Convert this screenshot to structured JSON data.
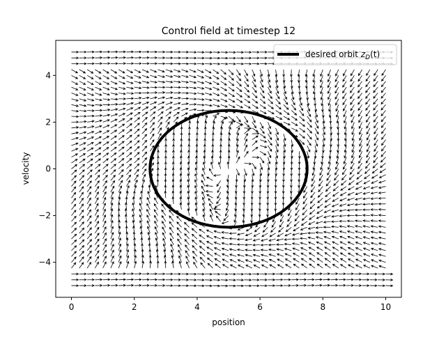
{
  "chart_data": {
    "type": "quiver",
    "title": "Control field at timestep 12",
    "xlabel": "position",
    "ylabel": "velocity",
    "xlim": [
      -0.5,
      10.5
    ],
    "ylim": [
      -5.5,
      5.5
    ],
    "x_ticks": [
      0,
      2,
      4,
      6,
      8,
      10
    ],
    "y_ticks": [
      -4,
      -2,
      0,
      2,
      4
    ],
    "x_tick_labels": [
      "0",
      "2",
      "4",
      "6",
      "8",
      "10"
    ],
    "y_tick_labels": [
      "−4",
      "−2",
      "0",
      "2",
      "4"
    ],
    "grid": false,
    "legend": {
      "placement": "upper right",
      "entries": [
        "desired orbit z_D(t)"
      ]
    },
    "legend_text_main": "desired orbit ",
    "legend_text_var": "z",
    "legend_text_sub": "D",
    "legend_text_arg": "(t)",
    "orbit": {
      "name": "desired orbit z_D(t)",
      "center": [
        5,
        0
      ],
      "x_radius": 2.5,
      "y_radius": 2.5,
      "color": "#000000"
    },
    "quiver": {
      "x_range": [
        0,
        10
      ],
      "y_range": [
        -5,
        5
      ],
      "grid_count": 41,
      "color": "#000000",
      "description_hidden": true
    }
  }
}
